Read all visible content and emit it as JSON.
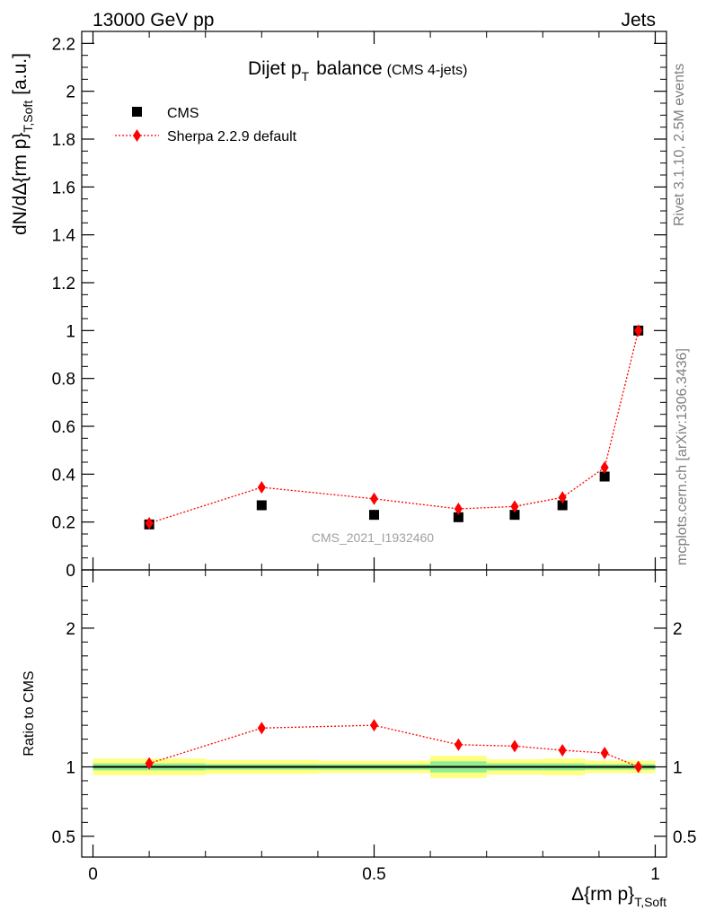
{
  "header": {
    "left": "13000 GeV pp",
    "right": "Jets"
  },
  "side_labels": {
    "rivet": "Rivet 3.1.10,  2.5M events",
    "mcplots": "mcplots.cern.ch [arXiv:1306.3436]"
  },
  "chart_data": [
    {
      "type": "scatter",
      "title": "Dijet p",
      "title_sub": "T",
      "title_suffix": "balance",
      "title_note": "(CMS 4-jets)",
      "ylabel": "dN/dΔ{rm p}",
      "ylabel_sub": "T,Soft",
      "ylabel_unit": "[a.u.]",
      "watermark": "CMS_2021_I1932460",
      "xlim": [
        -0.02,
        1.02
      ],
      "ylim": [
        0,
        2.25
      ],
      "yticks": [
        0,
        0.2,
        0.4,
        0.6,
        0.8,
        1,
        1.2,
        1.4,
        1.6,
        1.8,
        2,
        2.2
      ],
      "ytick_labels": [
        "0",
        "0.2",
        "0.4",
        "0.6",
        "0.8",
        "1",
        "1.2",
        "1.4",
        "1.6",
        "1.8",
        "2",
        "2.2"
      ],
      "legend_position": "top-left",
      "series": [
        {
          "name": "CMS",
          "color": "#000000",
          "marker": "square",
          "x": [
            0.1,
            0.3,
            0.5,
            0.65,
            0.75,
            0.835,
            0.91,
            0.97
          ],
          "y": [
            0.19,
            0.27,
            0.23,
            0.22,
            0.23,
            0.27,
            0.39,
            1.0
          ]
        },
        {
          "name": "Sherpa 2.2.9 default",
          "color": "#ff0000",
          "marker": "diamond",
          "line": "dotted",
          "x": [
            0.1,
            0.3,
            0.5,
            0.65,
            0.75,
            0.835,
            0.91,
            0.97
          ],
          "y": [
            0.195,
            0.345,
            0.297,
            0.255,
            0.265,
            0.303,
            0.428,
            1.0
          ]
        }
      ]
    },
    {
      "type": "scatter",
      "ylabel": "Ratio to CMS",
      "xlabel": "Δ{rm p}",
      "xlabel_sub": "T,Soft",
      "xlim": [
        -0.02,
        1.02
      ],
      "ylim": [
        0.35,
        2.42
      ],
      "xticks": [
        0,
        0.5,
        1
      ],
      "xtick_labels": [
        "0",
        "0.5",
        "1"
      ],
      "yticks": [
        0.5,
        1,
        2
      ],
      "ytick_labels": [
        "0.5",
        "1",
        "2"
      ],
      "bands": {
        "inner_color": "#90ee90",
        "outer_color": "#ffff80",
        "bins": [
          {
            "x0": 0.0,
            "x1": 0.2,
            "inner": [
              0.975,
              1.025
            ],
            "outer": [
              0.94,
              1.06
            ]
          },
          {
            "x0": 0.2,
            "x1": 0.4,
            "inner": [
              0.98,
              1.02
            ],
            "outer": [
              0.95,
              1.05
            ]
          },
          {
            "x0": 0.4,
            "x1": 0.6,
            "inner": [
              0.98,
              1.02
            ],
            "outer": [
              0.955,
              1.045
            ]
          },
          {
            "x0": 0.6,
            "x1": 0.7,
            "inner": [
              0.96,
              1.04
            ],
            "outer": [
              0.92,
              1.08
            ]
          },
          {
            "x0": 0.7,
            "x1": 0.8,
            "inner": [
              0.975,
              1.025
            ],
            "outer": [
              0.945,
              1.055
            ]
          },
          {
            "x0": 0.8,
            "x1": 0.875,
            "inner": [
              0.975,
              1.025
            ],
            "outer": [
              0.94,
              1.06
            ]
          },
          {
            "x0": 0.875,
            "x1": 1.0,
            "inner": [
              0.98,
              1.02
            ],
            "outer": [
              0.955,
              1.045
            ]
          }
        ]
      },
      "series": [
        {
          "name": "Sherpa 2.2.9 default",
          "color": "#ff0000",
          "marker": "diamond",
          "line": "dotted",
          "x": [
            0.1,
            0.3,
            0.5,
            0.65,
            0.75,
            0.835,
            0.91,
            0.97
          ],
          "y": [
            1.025,
            1.28,
            1.3,
            1.16,
            1.15,
            1.12,
            1.1,
            1.0
          ]
        }
      ]
    }
  ]
}
